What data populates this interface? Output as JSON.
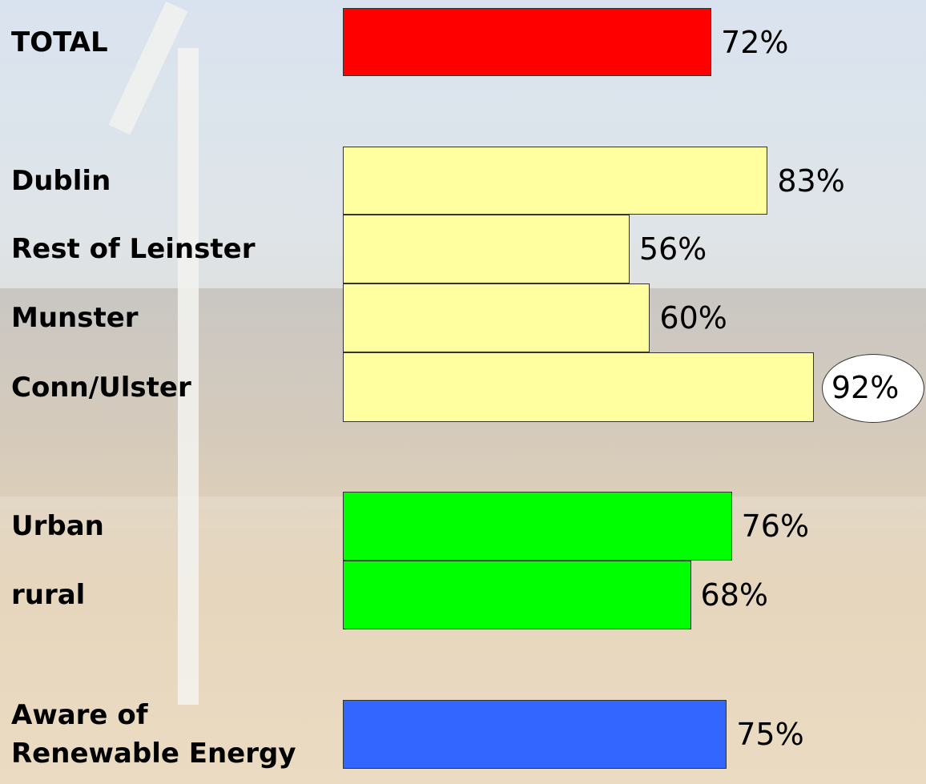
{
  "chart_data": {
    "type": "bar",
    "orientation": "horizontal",
    "categories": [
      "TOTAL",
      "Dublin",
      "Rest of Leinster",
      "Munster",
      "Conn/Ulster",
      "Urban",
      "rural",
      "Aware of\nRenewable Energy"
    ],
    "values": [
      72,
      83,
      56,
      60,
      92,
      76,
      68,
      75
    ],
    "value_labels": [
      "72%",
      "83%",
      "56%",
      "60%",
      "92%",
      "76%",
      "68%",
      "75%"
    ],
    "colors": [
      "#ff0000",
      "#ffffa0",
      "#ffffa0",
      "#ffffa0",
      "#ffffa0",
      "#00ff00",
      "#00ff00",
      "#3366ff"
    ]
  }
}
